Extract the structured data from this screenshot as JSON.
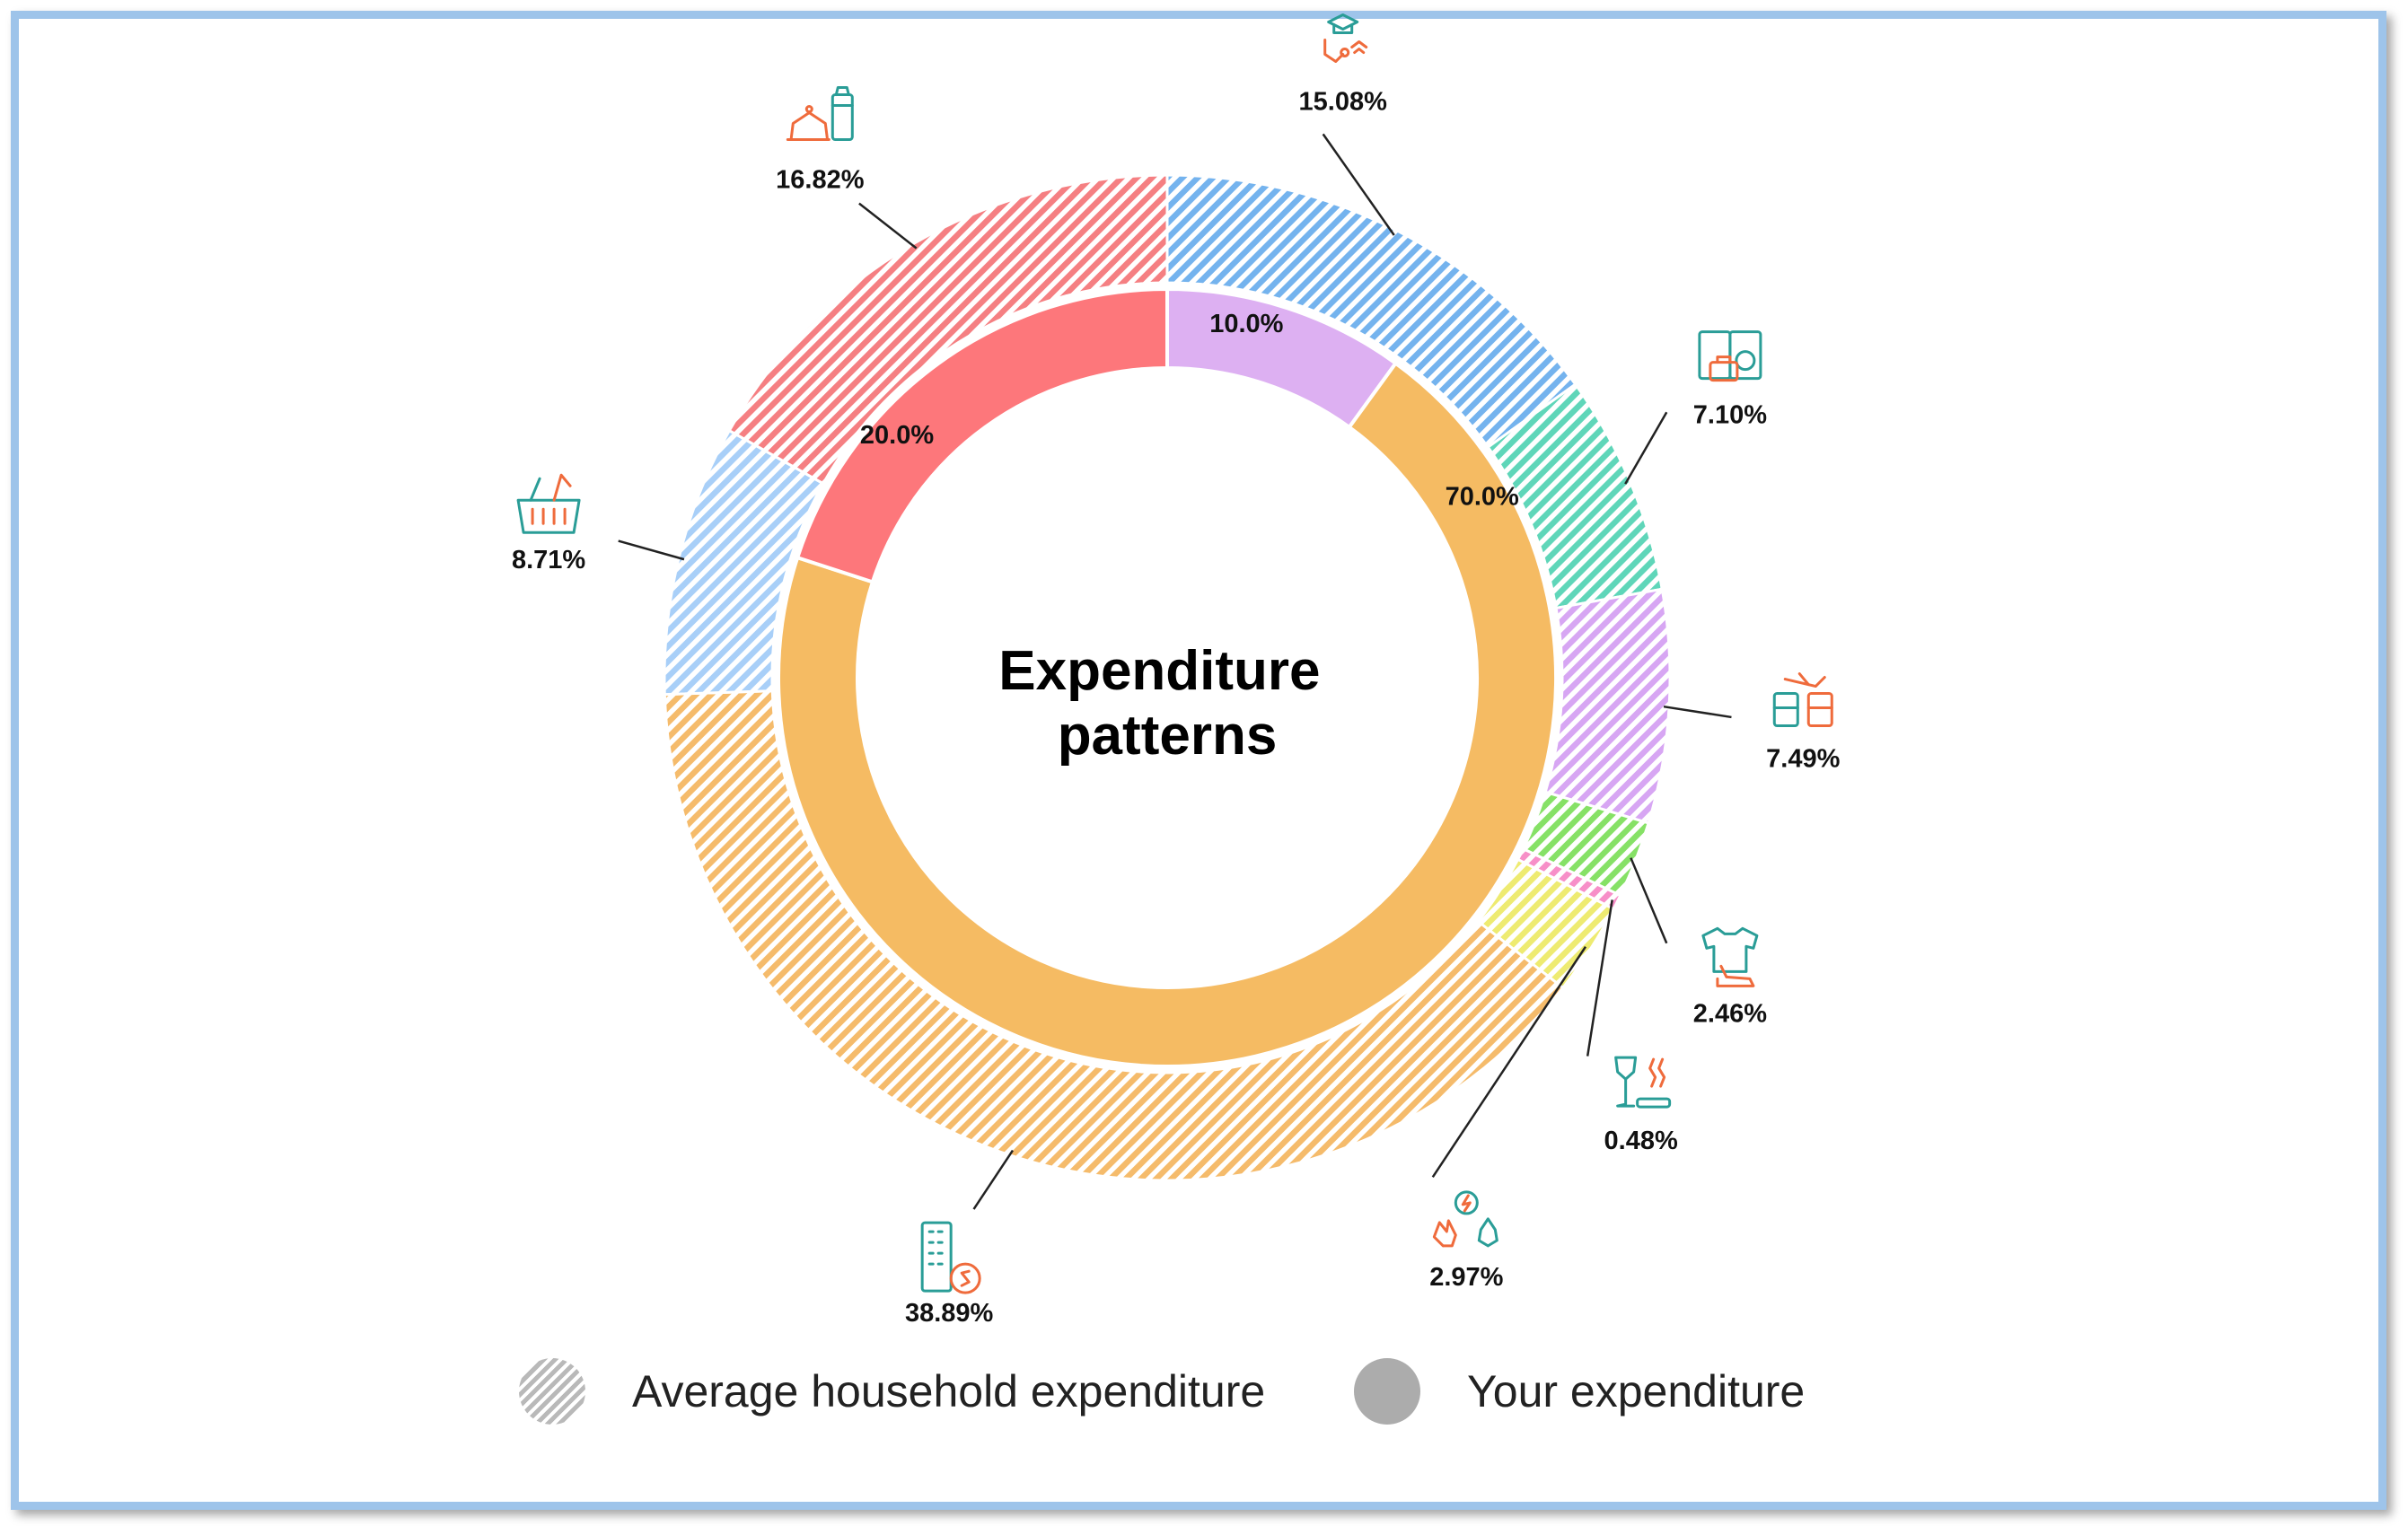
{
  "chart_data": {
    "type": "pie",
    "variant": "nested-donut",
    "title": "Expenditure patterns",
    "series": [
      {
        "name": "Average household expenditure",
        "pattern": "hatched",
        "slices": [
          {
            "category": "education-health-communication",
            "icon": "graduation-stethoscope-wifi-icon",
            "value": 15.08,
            "label": "15.08%",
            "color": "#74b3ee"
          },
          {
            "category": "household-services",
            "icon": "washing-machine-icon",
            "value": 7.1,
            "label": "7.10%",
            "color": "#5fd6b9"
          },
          {
            "category": "transport",
            "icon": "plane-bus-train-icon",
            "value": 7.49,
            "label": "7.49%",
            "color": "#d7a6f3"
          },
          {
            "category": "clothing-footwear",
            "icon": "shirt-shoe-icon",
            "value": 2.46,
            "label": "2.46%",
            "color": "#86e166"
          },
          {
            "category": "alcohol-tobacco",
            "icon": "wine-cigarette-icon",
            "value": 0.48,
            "label": "0.48%",
            "color": "#f78fc8"
          },
          {
            "category": "utilities",
            "icon": "electricity-fire-water-icon",
            "value": 2.97,
            "label": "2.97%",
            "color": "#eeeb71"
          },
          {
            "category": "housing",
            "icon": "building-dollar-icon",
            "value": 38.89,
            "label": "38.89%",
            "color": "#f5bb6b"
          },
          {
            "category": "groceries",
            "icon": "grocery-basket-icon",
            "value": 8.71,
            "label": "8.71%",
            "color": "#a8cff8"
          },
          {
            "category": "restaurants-takeaway",
            "icon": "dining-takeaway-icon",
            "value": 16.82,
            "label": "16.82%",
            "color": "#f57f82"
          }
        ]
      },
      {
        "name": "Your expenditure",
        "pattern": "solid",
        "slices": [
          {
            "category": "education-health-communication",
            "value": 10.0,
            "label": "10.0%",
            "color": "#ddb0f2"
          },
          {
            "category": "housing",
            "value": 70.0,
            "label": "70.0%",
            "color": "#f5bb63"
          },
          {
            "category": "restaurants-takeaway",
            "value": 20.0,
            "label": "20.0%",
            "color": "#fd777b"
          }
        ]
      }
    ],
    "legend": {
      "placement": "bottom",
      "items": [
        {
          "label": "Average household expenditure",
          "swatch": "hatched"
        },
        {
          "label": "Your expenditure",
          "swatch": "solid"
        }
      ]
    },
    "colors": {
      "frame_border": "#9ec4ea",
      "leader_line": "#222222",
      "icon_teal": "#2a9d97",
      "icon_orange": "#ef6b3c"
    }
  }
}
